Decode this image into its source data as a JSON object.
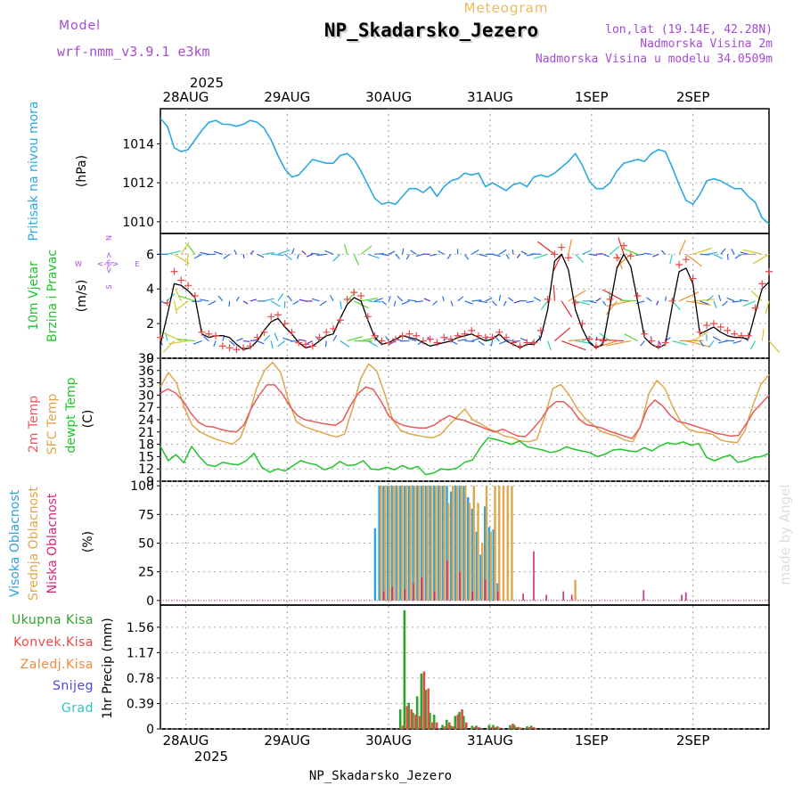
{
  "header": {
    "model_label": "Model",
    "model_name": "wrf-nmm_v3.9.1  e3km",
    "subtitle": "Meteogram",
    "title": "NP_Skadarsko_Jezero",
    "lonlat": "lon,lat (19.14E, 42.28N)",
    "elevation": "Nadmorska Visina 2m",
    "model_elevation": "Nadmorska Visina u modelu 34.0509m",
    "credit": "made by Angel",
    "footer_station": "NP_Skadarsko_Jezero"
  },
  "colors": {
    "title_purple": "#a64ad6",
    "meteogram_orange": "#f0b85c",
    "pressure": "#2aa8e0",
    "t2m": "#e85a5a",
    "sfc": "#e0a64c",
    "dew": "#22c52a",
    "cloud_high": "#2aa2e0",
    "cloud_mid": "#e0a64c",
    "cloud_low": "#d6287a",
    "precip_total": "#2aa52a",
    "precip_conv": "#e84848",
    "grid": "#aaaaaa",
    "credit": "#dddddd"
  },
  "time_axis": {
    "year": "2025",
    "days": [
      "28AUG",
      "29AUG",
      "30AUG",
      "31AUG",
      "1SEP",
      "2SEP"
    ],
    "start_hours_before_first_day": 6,
    "total_hours": 144
  },
  "wind_compass": {
    "n": "N",
    "s": "S",
    "e": "E",
    "w": "W",
    "arrows": "<-|->"
  },
  "chart_data": [
    {
      "id": "pressure",
      "type": "line",
      "title": "Pritisak na nivou mora",
      "ylabel": "(hPa)",
      "ylim": [
        1009.4,
        1015.8
      ],
      "yticks": [
        1010,
        1012,
        1014
      ],
      "series": [
        {
          "name": "Pritisak na nivou mora",
          "values": [
            1015.3,
            1014.9,
            1013.8,
            1013.6,
            1013.7,
            1014.2,
            1014.7,
            1015.1,
            1015.2,
            1015.0,
            1015.0,
            1014.9,
            1015.0,
            1015.2,
            1015.1,
            1014.8,
            1014.2,
            1013.4,
            1012.7,
            1012.3,
            1012.4,
            1012.8,
            1013.2,
            1013.1,
            1013.0,
            1013.0,
            1013.4,
            1013.5,
            1013.2,
            1012.6,
            1011.9,
            1011.2,
            1010.9,
            1011.0,
            1010.9,
            1011.3,
            1011.7,
            1011.7,
            1011.5,
            1011.8,
            1011.3,
            1011.8,
            1012.1,
            1012.2,
            1012.5,
            1012.4,
            1012.5,
            1011.8,
            1012.0,
            1011.8,
            1011.6,
            1011.9,
            1012.0,
            1011.8,
            1012.3,
            1012.4,
            1012.3,
            1012.5,
            1012.8,
            1013.1,
            1013.5,
            1012.9,
            1012.1,
            1011.7,
            1011.7,
            1012.0,
            1012.6,
            1013.0,
            1013.1,
            1013.2,
            1013.1,
            1013.5,
            1013.7,
            1013.6,
            1012.8,
            1011.9,
            1011.1,
            1010.9,
            1011.4,
            1012.1,
            1012.2,
            1012.1,
            1011.9,
            1011.7,
            1011.7,
            1011.3,
            1011.0,
            1010.2,
            1009.9
          ]
        }
      ]
    },
    {
      "id": "wind",
      "type": "line",
      "title_line1": "10m Vjetar",
      "title_line2": "Brzina i Pravac",
      "ylabel": "(m/s)",
      "ylim": [
        0,
        7.2
      ],
      "yticks": [
        0,
        2,
        4,
        6
      ],
      "series": [
        {
          "name": "mean speed",
          "values": [
            0.8,
            2.5,
            4.3,
            4.2,
            3.9,
            3.5,
            1.4,
            1.2,
            1.3,
            1.3,
            1.2,
            0.8,
            0.5,
            0.6,
            1.0,
            1.6,
            2.1,
            2.3,
            1.8,
            1.4,
            0.9,
            0.6,
            0.7,
            1.0,
            1.3,
            1.4,
            2.3,
            3.1,
            3.5,
            3.3,
            2.2,
            1.2,
            0.8,
            0.9,
            1.1,
            1.3,
            1.2,
            1.1,
            0.9,
            0.7,
            0.8,
            0.9,
            1.0,
            1.2,
            1.3,
            1.4,
            1.2,
            1.0,
            1.1,
            1.4,
            1.0,
            0.8,
            0.6,
            0.8,
            0.8,
            1.2,
            2.8,
            5.6,
            6.0,
            5.1,
            2.8,
            1.7,
            0.9,
            0.6,
            0.8,
            3.0,
            5.2,
            6.0,
            5.3,
            3.3,
            1.2,
            0.8,
            0.6,
            0.8,
            3.0,
            5.0,
            5.2,
            4.3,
            1.4,
            1.6,
            1.8,
            1.5,
            1.3,
            1.2,
            1.2,
            1.1,
            2.6,
            4.0,
            4.4
          ]
        },
        {
          "name": "gust (+)",
          "values": [
            1.2,
            3.2,
            5.0,
            4.5,
            4.2,
            3.6,
            1.5,
            1.4,
            1.3,
            0.7,
            0.6,
            0.5,
            0.6,
            0.7,
            1.2,
            1.5,
            2.4,
            2.5,
            2.0,
            1.5,
            0.9,
            0.8,
            0.7,
            1.2,
            1.5,
            1.7,
            2.2,
            3.4,
            3.8,
            3.6,
            2.4,
            1.3,
            1.0,
            0.9,
            1.1,
            1.3,
            1.4,
            1.3,
            1.0,
            1.1,
            0.9,
            1.2,
            1.1,
            1.3,
            1.4,
            1.6,
            1.3,
            1.2,
            1.2,
            1.5,
            1.2,
            0.9,
            0.7,
            0.9,
            0.9,
            1.6,
            3.4,
            6.0,
            6.4,
            5.8,
            3.2,
            2.0,
            1.1,
            0.7,
            1.0,
            3.4,
            5.8,
            6.5,
            5.9,
            3.6,
            1.4,
            1.0,
            0.7,
            0.9,
            3.3,
            5.4,
            5.7,
            4.6,
            1.5,
            1.9,
            2.0,
            1.8,
            1.6,
            1.4,
            1.3,
            1.3,
            2.9,
            4.3,
            5.0
          ]
        }
      ]
    },
    {
      "id": "temperature",
      "type": "line",
      "title_line1": "2m Temp",
      "title_line2": "SFC Temp",
      "title_line3": "dewpt Temp",
      "ylabel": "(C)",
      "ylim": [
        9,
        39
      ],
      "yticks": [
        9,
        12,
        15,
        18,
        21,
        24,
        27,
        30,
        33,
        36,
        39
      ],
      "series": [
        {
          "name": "2m Temp",
          "values": [
            30.5,
            31.5,
            30.5,
            28.5,
            25.6,
            23.4,
            22.4,
            22.2,
            21.6,
            21.2,
            21.0,
            22.8,
            27.0,
            30.0,
            32.5,
            32.5,
            30.4,
            27.4,
            25.0,
            24.0,
            23.6,
            23.2,
            22.9,
            22.6,
            23.9,
            27.5,
            30.4,
            32.0,
            31.4,
            28.5,
            25.0,
            23.4,
            22.6,
            22.2,
            22.0,
            22.0,
            22.7,
            24.0,
            25.0,
            24.2,
            23.8,
            23.0,
            22.4,
            21.6,
            21.0,
            21.7,
            20.8,
            20.0,
            19.9,
            21.8,
            24.0,
            26.8,
            28.4,
            28.4,
            26.8,
            24.2,
            22.8,
            22.4,
            22.0,
            21.2,
            20.6,
            20.0,
            19.4,
            22.0,
            26.8,
            28.8,
            27.4,
            25.1,
            23.6,
            23.2,
            22.6,
            22.0,
            21.4,
            20.7,
            20.4,
            20.0,
            20.2,
            23.0,
            26.0,
            28.0,
            30.0
          ]
        },
        {
          "name": "SFC Temp",
          "values": [
            32.0,
            35.5,
            33.0,
            26.8,
            22.6,
            21.0,
            20.0,
            19.2,
            18.6,
            18.0,
            19.6,
            24.8,
            31.6,
            36.0,
            38.0,
            35.6,
            28.6,
            23.5,
            22.3,
            21.6,
            21.0,
            20.3,
            19.8,
            20.5,
            26.8,
            34.0,
            37.6,
            36.0,
            30.4,
            24.0,
            21.4,
            20.6,
            20.2,
            19.8,
            19.6,
            20.4,
            22.6,
            24.6,
            26.6,
            24.0,
            23.0,
            21.8,
            21.0,
            20.0,
            19.6,
            18.8,
            18.6,
            19.2,
            24.8,
            31.6,
            32.6,
            30.2,
            26.8,
            24.4,
            22.8,
            21.2,
            20.5,
            20.0,
            19.0,
            18.6,
            22.6,
            30.4,
            33.6,
            31.6,
            27.0,
            23.4,
            21.6,
            21.0,
            20.8,
            20.4,
            19.0,
            18.6,
            18.4,
            21.4,
            27.6,
            32.6,
            35.0
          ]
        },
        {
          "name": "dewpt Temp",
          "values": [
            17.5,
            14.0,
            15.5,
            13.5,
            17.5,
            15.0,
            13.0,
            12.6,
            13.6,
            13.2,
            13.0,
            14.0,
            15.8,
            12.4,
            11.2,
            12.0,
            11.5,
            12.8,
            14.0,
            13.4,
            13.0,
            11.8,
            12.4,
            13.8,
            12.8,
            13.0,
            14.0,
            12.0,
            11.8,
            12.4,
            11.8,
            12.8,
            12.0,
            12.6,
            10.6,
            11.0,
            12.0,
            11.8,
            12.2,
            13.6,
            14.2,
            17.2,
            19.6,
            19.2,
            18.6,
            18.0,
            18.8,
            17.4,
            17.0,
            16.6,
            16.0,
            16.4,
            17.4,
            16.8,
            16.4,
            16.0,
            15.0,
            15.6,
            16.6,
            16.8,
            16.4,
            16.2,
            17.2,
            16.4,
            17.6,
            18.4,
            18.0,
            18.6,
            17.8,
            18.2,
            14.8,
            14.0,
            14.8,
            15.4,
            13.6,
            14.0,
            14.8,
            15.0,
            15.8
          ]
        }
      ]
    },
    {
      "id": "cloud",
      "type": "bar",
      "title_line1": "Visoka Oblacnost",
      "title_line2": "Srednja Oblacnost",
      "title_line3": "Niska Oblacnost",
      "ylabel": "(%)",
      "ylim": [
        -4,
        104
      ],
      "yticks": [
        0,
        25,
        50,
        75,
        100
      ],
      "series": [
        {
          "name": "Visoka Oblacnost",
          "hours": [
            51.0,
            52.0,
            53.0,
            54.0,
            55.0,
            56.0,
            57.0,
            58.0,
            59.0,
            60.0,
            61.0,
            62.0,
            63.0,
            64.0,
            65.0,
            66.0,
            67.0,
            68.0,
            69.0,
            70.0,
            71.0,
            72.0,
            73.0,
            74.0,
            75.0,
            76.0,
            77.0,
            78.0,
            79.0,
            80.0
          ],
          "values": [
            63.0,
            100.0,
            100.0,
            100.0,
            100.0,
            100.0,
            100.0,
            100.0,
            100.0,
            100.0,
            100.0,
            100.0,
            100.0,
            100.0,
            100.0,
            100.0,
            100.0,
            100.0,
            95.0,
            100.0,
            100.0,
            100.0,
            90.0,
            80.0,
            60.0,
            40.0,
            82.0,
            64.0,
            62.0,
            15.0
          ]
        },
        {
          "name": "Srednja Oblacnost",
          "hours": [
            52.0,
            53.0,
            54.0,
            55.0,
            56.0,
            57.0,
            58.0,
            59.0,
            60.0,
            61.0,
            62.0,
            63.0,
            64.0,
            65.0,
            66.0,
            67.0,
            68.0,
            69.0,
            70.0,
            71.0,
            72.0,
            73.0,
            74.0,
            75.0,
            76.0,
            77.0,
            78.0,
            79.0,
            80.0,
            81.0,
            82.0,
            83.0,
            98.0
          ],
          "values": [
            100.0,
            100.0,
            100.0,
            100.0,
            100.0,
            100.0,
            100.0,
            100.0,
            100.0,
            100.0,
            100.0,
            100.0,
            100.0,
            100.0,
            100.0,
            100.0,
            85.0,
            100.0,
            100.0,
            100.0,
            100.0,
            85.0,
            100.0,
            85.0,
            50.0,
            100.0,
            60.0,
            100.0,
            100.0,
            100.0,
            100.0,
            100.0,
            18.0
          ]
        },
        {
          "name": "Niska Oblacnost",
          "hours": [
            52.5,
            54.5,
            57.5,
            59.5,
            61.5,
            64.5,
            67.5,
            70.5,
            73.5,
            76.5,
            79.5,
            85.5,
            88.0,
            91.0,
            95.0,
            97.0,
            114.0,
            123.0,
            124.0
          ],
          "values": [
            8.0,
            12.0,
            10.0,
            15.0,
            20.0,
            8.0,
            35.0,
            25.0,
            8.0,
            18.0,
            8.0,
            6.0,
            43.0,
            5.0,
            8.0,
            5.0,
            9.0,
            5.0,
            7.0
          ]
        }
      ]
    },
    {
      "id": "precip",
      "type": "bar",
      "ylabel": "1hr Precip (mm)",
      "legend": [
        "Ukupna Kisa",
        "Konvek.Kisa",
        "Zaledj.Kisa",
        "Snijeg",
        "Grad"
      ],
      "ylim": [
        0,
        1.9
      ],
      "yticks": [
        0,
        0.39,
        0.78,
        1.17,
        1.56
      ],
      "series": [
        {
          "name": "Ukupna Kisa",
          "hours": [
            57,
            58,
            59,
            60,
            61,
            62,
            63,
            64,
            65,
            67,
            68,
            69,
            70,
            71,
            72,
            74,
            75,
            78,
            79,
            80,
            83,
            84,
            85,
            87,
            88
          ],
          "values": [
            0.3,
            1.82,
            0.4,
            0.25,
            0.5,
            0.85,
            0.6,
            0.25,
            0.22,
            0.06,
            0.14,
            0.05,
            0.2,
            0.26,
            0.2,
            0.05,
            0.05,
            0.06,
            0.06,
            0.04,
            0.06,
            0.06,
            0.03,
            0.04,
            0.05
          ]
        },
        {
          "name": "Konvek.Kisa",
          "hours": [
            57,
            58,
            59,
            60,
            61,
            62,
            63,
            64,
            65,
            67,
            68,
            69,
            70,
            71,
            72,
            74,
            75,
            78,
            79,
            80,
            83,
            84,
            85,
            87,
            88
          ],
          "values": [
            0.05,
            0.35,
            0.3,
            0.22,
            0.2,
            0.88,
            0.62,
            0.1,
            0.1,
            0.04,
            0.1,
            0.04,
            0.22,
            0.3,
            0.1,
            0.03,
            0.03,
            0.03,
            0.03,
            0.02,
            0.08,
            0.03,
            0.02,
            0.03,
            0.03
          ]
        }
      ]
    }
  ]
}
